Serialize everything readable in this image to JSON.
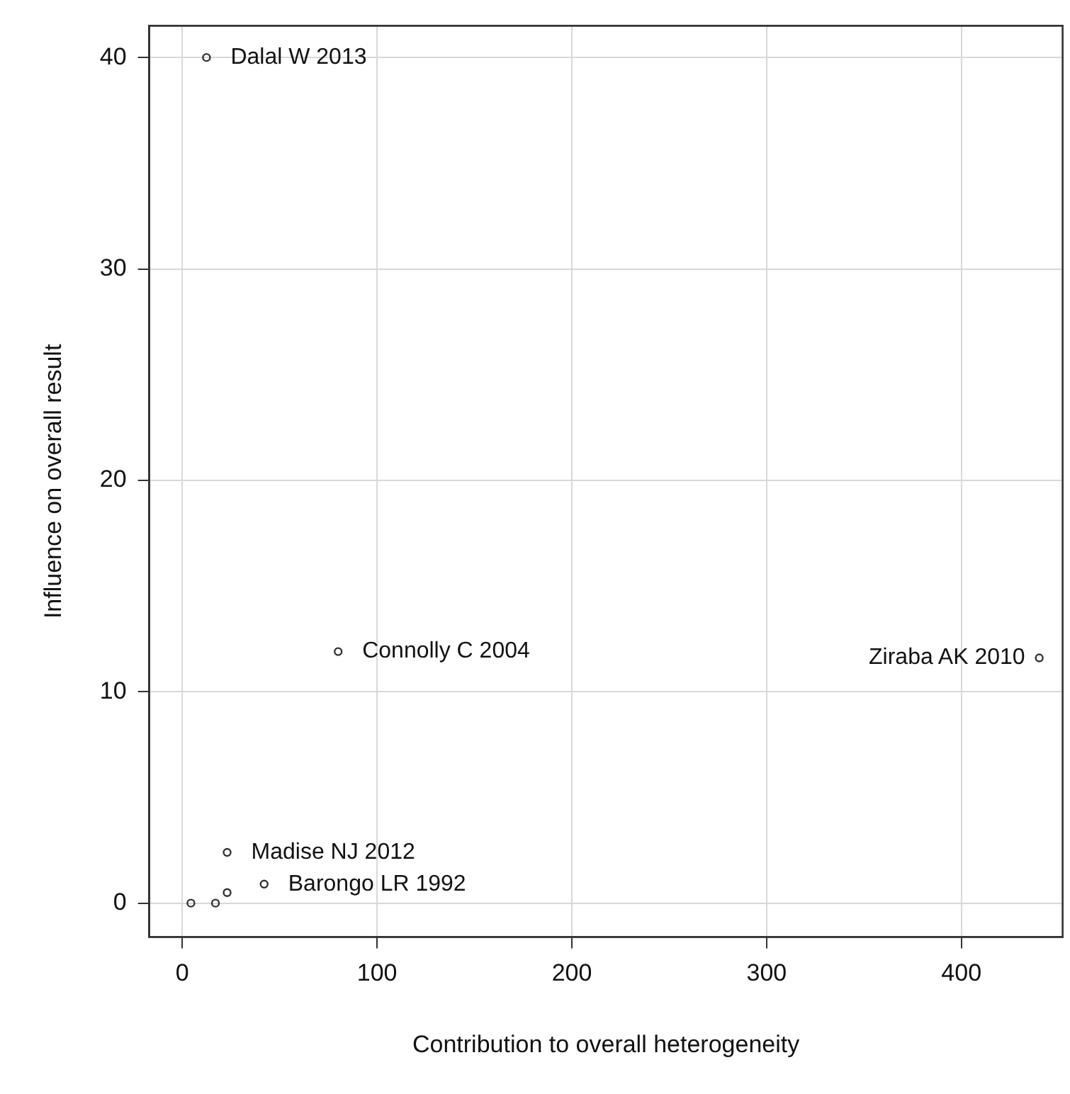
{
  "chart_data": {
    "type": "scatter",
    "xlabel": "Contribution to overall heterogeneity",
    "ylabel": "Influence on overall result",
    "x": [
      12.4,
      80,
      440,
      23,
      42,
      23,
      17,
      4.4
    ],
    "values": [
      40,
      11.9,
      11.6,
      2.4,
      0.9,
      0.5,
      0,
      0
    ],
    "color": "#333333",
    "marker": "circle",
    "xlim": [
      -17,
      452
    ],
    "ylim": [
      -1.6,
      41.5
    ],
    "xticks": [
      0,
      100,
      200,
      300,
      400
    ],
    "yticks": [
      0,
      10,
      20,
      30,
      40
    ],
    "grid": true,
    "legend": false,
    "annotations": [
      {
        "text": "Dalal W 2013",
        "x": 12.4,
        "y": 40
      },
      {
        "text": "Connolly C 2004",
        "x": 80,
        "y": 11.9
      },
      {
        "text": "Ziraba AK 2010",
        "x": 440,
        "y": 11.6
      },
      {
        "text": "Madise NJ 2012",
        "x": 23,
        "y": 2.4
      },
      {
        "text": "Barongo LR 1992",
        "x": 42,
        "y": 0.9
      }
    ]
  }
}
